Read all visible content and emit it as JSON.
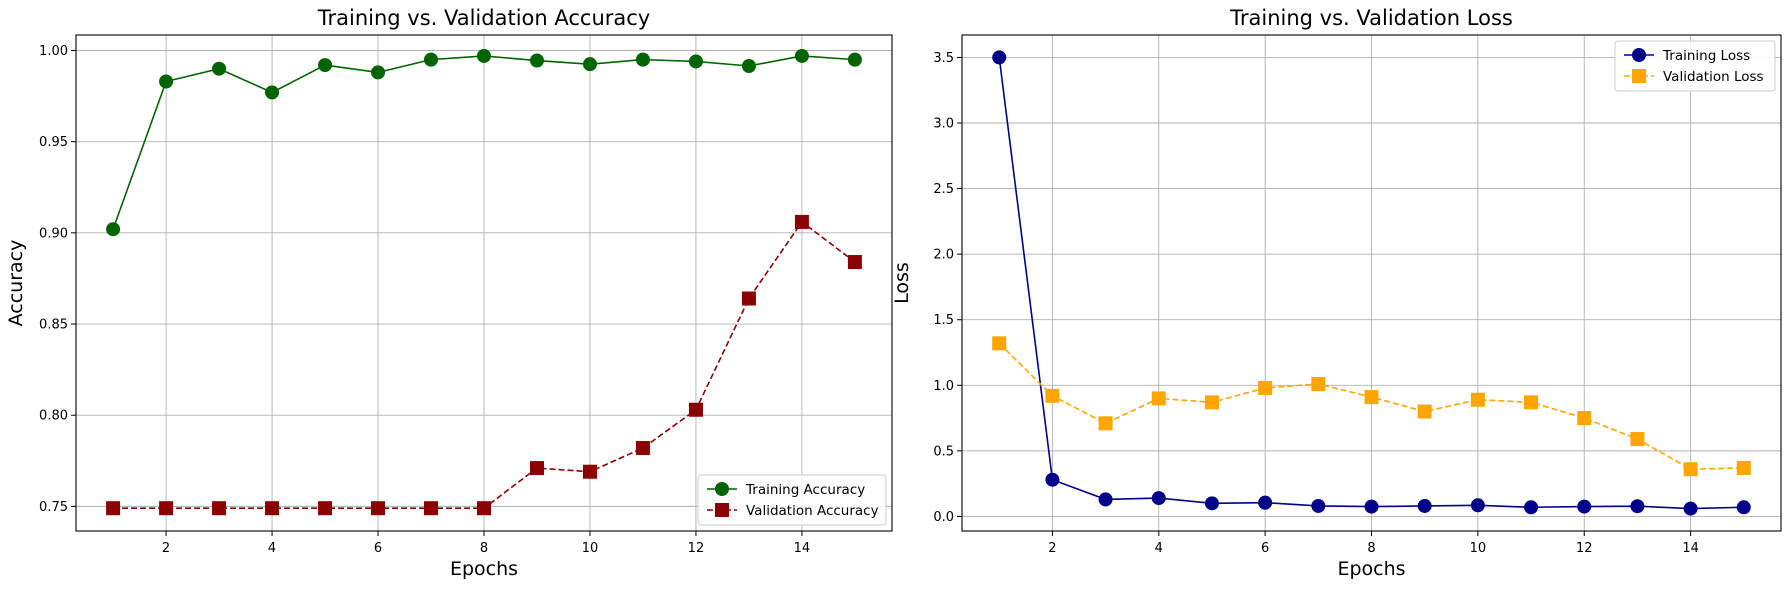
{
  "chart_data": [
    {
      "type": "line",
      "title": "Training vs. Validation Accuracy",
      "xlabel": "Epochs",
      "ylabel": "Accuracy",
      "xlim": [
        0.3,
        15.7
      ],
      "ylim": [
        0.7365,
        1.0085
      ],
      "xticks": [
        2,
        4,
        6,
        8,
        10,
        12,
        14
      ],
      "xtick_labels": [
        "2",
        "4",
        "6",
        "8",
        "10",
        "12",
        "14"
      ],
      "yticks": [
        0.75,
        0.8,
        0.85,
        0.9,
        0.95,
        1.0
      ],
      "ytick_labels": [
        "0.75",
        "0.80",
        "0.85",
        "0.90",
        "0.95",
        "1.00"
      ],
      "grid": true,
      "legend_position": "lower-right",
      "x": [
        1,
        2,
        3,
        4,
        5,
        6,
        7,
        8,
        9,
        10,
        11,
        12,
        13,
        14,
        15
      ],
      "series": [
        {
          "name": "Training Accuracy",
          "color": "#006400",
          "marker": "circle",
          "linestyle": "solid",
          "values": [
            0.902,
            0.983,
            0.99,
            0.977,
            0.992,
            0.988,
            0.995,
            0.997,
            0.9945,
            0.9925,
            0.995,
            0.994,
            0.9915,
            0.997,
            0.995
          ]
        },
        {
          "name": "Validation Accuracy",
          "color": "#8b0000",
          "marker": "square",
          "linestyle": "dashed",
          "values": [
            0.749,
            0.749,
            0.749,
            0.749,
            0.749,
            0.749,
            0.749,
            0.749,
            0.771,
            0.769,
            0.782,
            0.803,
            0.864,
            0.906,
            0.884
          ]
        }
      ]
    },
    {
      "type": "line",
      "title": "Training vs. Validation Loss",
      "xlabel": "Epochs",
      "ylabel": "Loss",
      "xlim": [
        0.3,
        15.7
      ],
      "ylim": [
        -0.111,
        3.671
      ],
      "xticks": [
        2,
        4,
        6,
        8,
        10,
        12,
        14
      ],
      "xtick_labels": [
        "2",
        "4",
        "6",
        "8",
        "10",
        "12",
        "14"
      ],
      "yticks": [
        0.0,
        0.5,
        1.0,
        1.5,
        2.0,
        2.5,
        3.0,
        3.5
      ],
      "ytick_labels": [
        "0.0",
        "0.5",
        "1.0",
        "1.5",
        "2.0",
        "2.5",
        "3.0",
        "3.5"
      ],
      "grid": true,
      "legend_position": "upper-right",
      "x": [
        1,
        2,
        3,
        4,
        5,
        6,
        7,
        8,
        9,
        10,
        11,
        12,
        13,
        14,
        15
      ],
      "series": [
        {
          "name": "Training Loss",
          "color": "#00008b",
          "marker": "circle",
          "linestyle": "solid",
          "values": [
            3.5,
            0.28,
            0.13,
            0.14,
            0.1,
            0.105,
            0.08,
            0.075,
            0.08,
            0.085,
            0.07,
            0.075,
            0.078,
            0.06,
            0.07
          ]
        },
        {
          "name": "Validation Loss",
          "color": "#ffa500",
          "marker": "square",
          "linestyle": "dashed",
          "values": [
            1.32,
            0.92,
            0.71,
            0.9,
            0.87,
            0.98,
            1.01,
            0.91,
            0.8,
            0.89,
            0.87,
            0.75,
            0.59,
            0.36,
            0.37
          ]
        }
      ]
    }
  ]
}
